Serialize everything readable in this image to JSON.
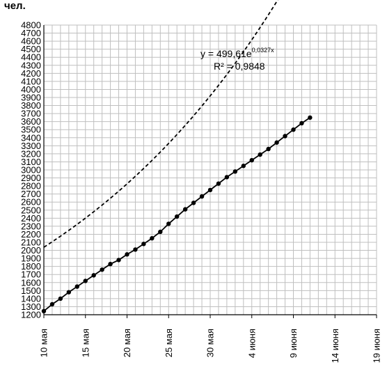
{
  "chart_data": {
    "type": "line",
    "unit_label": "чел.",
    "xlabel": "",
    "ylabel": "",
    "x_ticks": [
      "10 мая",
      "15 мая",
      "20 мая",
      "25 мая",
      "30 мая",
      "4 июня",
      "9 июня",
      "14 июня",
      "19 июня"
    ],
    "x_tick_days": [
      0,
      5,
      10,
      15,
      20,
      25,
      30,
      35,
      40
    ],
    "xlim_days": [
      0,
      40
    ],
    "ylim": [
      1200,
      4800
    ],
    "y_step": 100,
    "grid": true,
    "annotations": {
      "equation_prefix": "y = 499,61e",
      "equation_exponent": "0,0327x",
      "r_squared": "R² = 0,9848"
    },
    "series": [
      {
        "style": "solid-line-with-markers",
        "x_days": [
          0,
          1,
          2,
          3,
          4,
          5,
          6,
          7,
          8,
          9,
          10,
          11,
          12,
          13,
          14,
          15,
          16,
          17,
          18,
          19,
          20,
          21,
          22,
          23,
          24,
          25,
          26,
          27,
          28,
          29,
          30,
          31,
          32
        ],
        "values": [
          1245,
          1330,
          1400,
          1480,
          1550,
          1620,
          1690,
          1760,
          1830,
          1880,
          1950,
          2010,
          2080,
          2150,
          2230,
          2330,
          2420,
          2510,
          2590,
          2670,
          2750,
          2830,
          2910,
          2980,
          3050,
          3120,
          3190,
          3260,
          3340,
          3420,
          3500,
          3580,
          3650
        ]
      },
      {
        "style": "dashed-trendline",
        "equation": {
          "a": 499.61,
          "b": 0.0327,
          "x_offset": 43
        },
        "x_start_day": 0,
        "x_end_day": 39.5
      }
    ],
    "colors": {
      "line": "#000000",
      "grid": "#bfbfbf"
    }
  }
}
